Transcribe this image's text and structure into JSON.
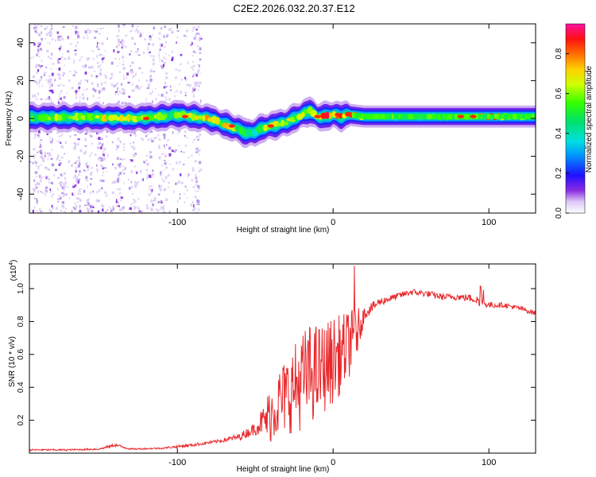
{
  "title": "C2E2.2026.032.20.37.E12",
  "chart_data": [
    {
      "type": "heatmap",
      "title": "C2E2.2026.032.20.37.E12",
      "xlabel": "Height of straight line (km)",
      "ylabel": "Frequency (Hz)",
      "xlim": [
        -195,
        130
      ],
      "ylim": [
        -50,
        50
      ],
      "x_ticks": [
        -100,
        0,
        100
      ],
      "x_tick_labels": [
        "-100",
        "0",
        "100"
      ],
      "y_ticks": [
        -40,
        -20,
        0,
        20,
        40
      ],
      "y_tick_labels": [
        "-40",
        "-20",
        "0",
        "20",
        "40"
      ],
      "colorbar": {
        "label": "Normalized spectral amplitude",
        "range": [
          0,
          0.95
        ],
        "ticks": [
          0.0,
          0.2,
          0.4,
          0.6,
          0.8
        ],
        "tick_labels": [
          "0.0",
          "0.2",
          "0.4",
          "0.6",
          "0.8"
        ]
      },
      "ridge": {
        "description_points_x": [
          -195,
          -160,
          -130,
          -110,
          -100,
          -90,
          -80,
          -70,
          -60,
          -55,
          -50,
          -45,
          -40,
          -30,
          -20,
          -15,
          -10,
          -5,
          0,
          5,
          10,
          20,
          40,
          60,
          80,
          100,
          130
        ],
        "description_points_y": [
          0.5,
          0.5,
          0,
          1,
          2,
          1,
          0,
          -3,
          -6,
          -8,
          -7,
          -5,
          -4,
          -2,
          2,
          4,
          1,
          1,
          2,
          1,
          2,
          1,
          1,
          1,
          1,
          1,
          1
        ],
        "peak_intensity": [
          0.6,
          0.75,
          0.7,
          0.65,
          0.6,
          0.7,
          0.8,
          0.75,
          0.6,
          0.55,
          0.5,
          0.6,
          0.8,
          0.7,
          0.65,
          0.7,
          0.8,
          0.85,
          0.9,
          0.85,
          0.9,
          0.55,
          0.5,
          0.5,
          0.55,
          0.9,
          0.5
        ]
      }
    },
    {
      "type": "line",
      "xlabel": "Height of straight line (km)",
      "ylabel": "SNR (10 * v/v)",
      "multiplier_label": "(x10",
      "multiplier_exp": "4",
      "multiplier_close": ")",
      "xlim": [
        -195,
        130
      ],
      "ylim": [
        0,
        1.15
      ],
      "x_ticks": [
        -100,
        0,
        100
      ],
      "x_tick_labels": [
        "-100",
        "0",
        "100"
      ],
      "y_ticks": [
        0.2,
        0.4,
        0.6,
        0.8,
        1.0
      ],
      "y_tick_labels": [
        "0.2",
        "0.4",
        "0.6",
        "0.8",
        "1.0"
      ],
      "series": [
        {
          "name": "SNR",
          "color": "#e8282c",
          "envelope_x": [
            -195,
            -170,
            -150,
            -140,
            -130,
            -110,
            -90,
            -75,
            -60,
            -50,
            -45,
            -40,
            -35,
            -30,
            -25,
            -20,
            -15,
            -10,
            -5,
            0,
            5,
            10,
            15,
            20,
            30,
            40,
            50,
            60,
            70,
            80,
            90,
            95,
            100,
            110,
            120,
            130
          ],
          "envelope_y": [
            0.02,
            0.02,
            0.025,
            0.05,
            0.025,
            0.03,
            0.05,
            0.07,
            0.1,
            0.15,
            0.2,
            0.28,
            0.35,
            0.4,
            0.45,
            0.5,
            0.55,
            0.55,
            0.58,
            0.62,
            0.65,
            0.7,
            0.76,
            0.85,
            0.92,
            0.95,
            0.98,
            0.97,
            0.95,
            0.95,
            0.94,
            0.92,
            0.9,
            0.9,
            0.88,
            0.85
          ],
          "noise_amplitude_y": [
            0.01,
            0.01,
            0.01,
            0.02,
            0.01,
            0.01,
            0.02,
            0.02,
            0.04,
            0.08,
            0.18,
            0.3,
            0.35,
            0.4,
            0.45,
            0.5,
            0.5,
            0.5,
            0.45,
            0.45,
            0.4,
            0.35,
            0.25,
            0.08,
            0.05,
            0.04,
            0.04,
            0.04,
            0.04,
            0.04,
            0.05,
            0.06,
            0.04,
            0.03,
            0.03,
            0.03
          ]
        }
      ]
    }
  ]
}
